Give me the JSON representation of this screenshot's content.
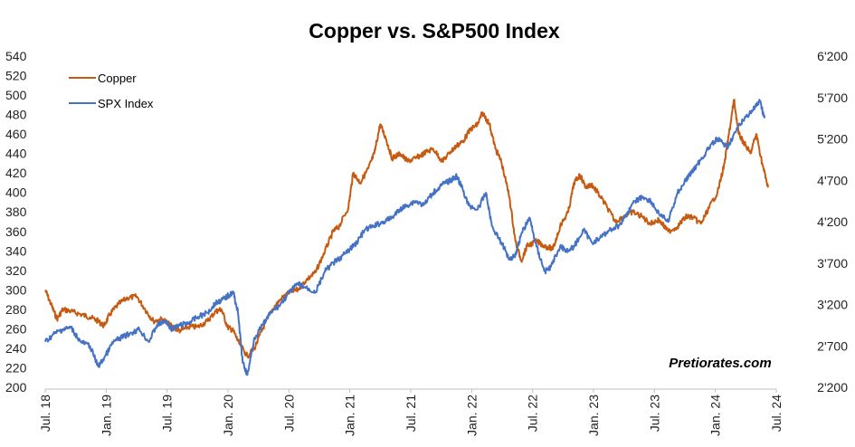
{
  "chart_data": {
    "type": "line",
    "title": "Copper vs. S&P500 Index",
    "watermark": "Pretiorates.com",
    "x_tick_labels": [
      "Jul. 18",
      "Jan. 19",
      "Jul. 19",
      "Jan. 20",
      "Jul. 20",
      "Jan. 21",
      "Jul. 21",
      "Jan. 22",
      "Jul. 22",
      "Jan. 23",
      "Jul. 23",
      "Jan. 24",
      "Jul. 24"
    ],
    "x_range": [
      2018.5,
      2024.72
    ],
    "y_left": {
      "range": [
        200,
        540
      ],
      "ticks": [
        200,
        220,
        240,
        260,
        280,
        300,
        320,
        340,
        360,
        380,
        400,
        420,
        440,
        460,
        480,
        500,
        520,
        540
      ]
    },
    "y_right": {
      "range": [
        2200,
        6200
      ],
      "ticks": [
        2200,
        2700,
        3200,
        3700,
        4200,
        4700,
        5200,
        5700,
        6200
      ],
      "tick_labels": [
        "2'200",
        "2'700",
        "3'200",
        "3'700",
        "4'200",
        "4'700",
        "5'200",
        "5'700",
        "6'200"
      ]
    },
    "grid": false,
    "legend_position": "top-left",
    "series": [
      {
        "name": "Copper",
        "axis": "left",
        "color": "#C65A11",
        "points": [
          [
            2018.5,
            300
          ],
          [
            2018.55,
            285
          ],
          [
            2018.6,
            270
          ],
          [
            2018.65,
            280
          ],
          [
            2018.72,
            278
          ],
          [
            2018.8,
            275
          ],
          [
            2018.88,
            272
          ],
          [
            2018.95,
            268
          ],
          [
            2019.0,
            263
          ],
          [
            2019.05,
            275
          ],
          [
            2019.12,
            285
          ],
          [
            2019.2,
            292
          ],
          [
            2019.28,
            293
          ],
          [
            2019.35,
            280
          ],
          [
            2019.42,
            268
          ],
          [
            2019.5,
            270
          ],
          [
            2019.58,
            262
          ],
          [
            2019.65,
            258
          ],
          [
            2019.72,
            262
          ],
          [
            2019.8,
            262
          ],
          [
            2019.88,
            268
          ],
          [
            2019.95,
            278
          ],
          [
            2020.0,
            280
          ],
          [
            2020.05,
            262
          ],
          [
            2020.1,
            258
          ],
          [
            2020.15,
            245
          ],
          [
            2020.22,
            232
          ],
          [
            2020.28,
            240
          ],
          [
            2020.35,
            260
          ],
          [
            2020.42,
            278
          ],
          [
            2020.5,
            290
          ],
          [
            2020.58,
            298
          ],
          [
            2020.65,
            300
          ],
          [
            2020.72,
            310
          ],
          [
            2020.8,
            318
          ],
          [
            2020.88,
            340
          ],
          [
            2020.95,
            360
          ],
          [
            2021.0,
            365
          ],
          [
            2021.08,
            385
          ],
          [
            2021.12,
            420
          ],
          [
            2021.18,
            410
          ],
          [
            2021.25,
            425
          ],
          [
            2021.3,
            440
          ],
          [
            2021.35,
            470
          ],
          [
            2021.4,
            455
          ],
          [
            2021.45,
            435
          ],
          [
            2021.52,
            440
          ],
          [
            2021.58,
            432
          ],
          [
            2021.65,
            435
          ],
          [
            2021.72,
            440
          ],
          [
            2021.8,
            445
          ],
          [
            2021.88,
            432
          ],
          [
            2021.95,
            442
          ],
          [
            2022.0,
            448
          ],
          [
            2022.05,
            452
          ],
          [
            2022.12,
            465
          ],
          [
            2022.18,
            470
          ],
          [
            2022.22,
            482
          ],
          [
            2022.28,
            470
          ],
          [
            2022.33,
            445
          ],
          [
            2022.38,
            432
          ],
          [
            2022.45,
            395
          ],
          [
            2022.5,
            350
          ],
          [
            2022.55,
            330
          ],
          [
            2022.6,
            345
          ],
          [
            2022.68,
            350
          ],
          [
            2022.75,
            345
          ],
          [
            2022.82,
            342
          ],
          [
            2022.88,
            365
          ],
          [
            2022.95,
            380
          ],
          [
            2023.0,
            410
          ],
          [
            2023.05,
            418
          ],
          [
            2023.1,
            405
          ],
          [
            2023.15,
            408
          ],
          [
            2023.2,
            400
          ],
          [
            2023.28,
            385
          ],
          [
            2023.35,
            370
          ],
          [
            2023.42,
            375
          ],
          [
            2023.5,
            380
          ],
          [
            2023.58,
            375
          ],
          [
            2023.65,
            368
          ],
          [
            2023.72,
            372
          ],
          [
            2023.8,
            360
          ],
          [
            2023.88,
            365
          ],
          [
            2023.95,
            375
          ],
          [
            2024.0,
            375
          ],
          [
            2024.08,
            368
          ],
          [
            2024.15,
            385
          ],
          [
            2024.22,
            400
          ],
          [
            2024.28,
            430
          ],
          [
            2024.33,
            470
          ],
          [
            2024.36,
            495
          ],
          [
            2024.4,
            460
          ],
          [
            2024.45,
            450
          ],
          [
            2024.5,
            440
          ],
          [
            2024.55,
            460
          ],
          [
            2024.6,
            430
          ],
          [
            2024.65,
            405
          ]
        ]
      },
      {
        "name": "SPX Index",
        "axis": "right",
        "color": "#4472C4",
        "points": [
          [
            2018.5,
            2750
          ],
          [
            2018.58,
            2850
          ],
          [
            2018.65,
            2900
          ],
          [
            2018.72,
            2920
          ],
          [
            2018.8,
            2750
          ],
          [
            2018.88,
            2700
          ],
          [
            2018.95,
            2450
          ],
          [
            2019.0,
            2550
          ],
          [
            2019.08,
            2750
          ],
          [
            2019.15,
            2800
          ],
          [
            2019.22,
            2850
          ],
          [
            2019.3,
            2900
          ],
          [
            2019.38,
            2750
          ],
          [
            2019.45,
            2950
          ],
          [
            2019.52,
            3000
          ],
          [
            2019.58,
            2900
          ],
          [
            2019.65,
            2950
          ],
          [
            2019.72,
            2980
          ],
          [
            2019.8,
            3050
          ],
          [
            2019.88,
            3100
          ],
          [
            2019.95,
            3220
          ],
          [
            2020.0,
            3250
          ],
          [
            2020.05,
            3300
          ],
          [
            2020.1,
            3350
          ],
          [
            2020.14,
            3100
          ],
          [
            2020.18,
            2500
          ],
          [
            2020.22,
            2350
          ],
          [
            2020.28,
            2800
          ],
          [
            2020.35,
            2950
          ],
          [
            2020.42,
            3100
          ],
          [
            2020.5,
            3200
          ],
          [
            2020.58,
            3350
          ],
          [
            2020.65,
            3450
          ],
          [
            2020.72,
            3400
          ],
          [
            2020.8,
            3350
          ],
          [
            2020.88,
            3600
          ],
          [
            2020.95,
            3700
          ],
          [
            2021.0,
            3750
          ],
          [
            2021.08,
            3850
          ],
          [
            2021.15,
            3950
          ],
          [
            2021.22,
            4100
          ],
          [
            2021.3,
            4150
          ],
          [
            2021.38,
            4200
          ],
          [
            2021.45,
            4250
          ],
          [
            2021.52,
            4350
          ],
          [
            2021.58,
            4400
          ],
          [
            2021.65,
            4450
          ],
          [
            2021.72,
            4400
          ],
          [
            2021.8,
            4550
          ],
          [
            2021.88,
            4650
          ],
          [
            2021.95,
            4700
          ],
          [
            2022.0,
            4750
          ],
          [
            2022.05,
            4600
          ],
          [
            2022.1,
            4400
          ],
          [
            2022.18,
            4350
          ],
          [
            2022.25,
            4550
          ],
          [
            2022.3,
            4150
          ],
          [
            2022.38,
            3950
          ],
          [
            2022.45,
            3750
          ],
          [
            2022.5,
            3800
          ],
          [
            2022.55,
            4050
          ],
          [
            2022.62,
            4250
          ],
          [
            2022.68,
            3900
          ],
          [
            2022.75,
            3600
          ],
          [
            2022.8,
            3650
          ],
          [
            2022.88,
            3900
          ],
          [
            2022.95,
            3850
          ],
          [
            2023.0,
            3900
          ],
          [
            2023.08,
            4100
          ],
          [
            2023.15,
            3950
          ],
          [
            2023.22,
            4000
          ],
          [
            2023.3,
            4100
          ],
          [
            2023.38,
            4150
          ],
          [
            2023.45,
            4300
          ],
          [
            2023.52,
            4450
          ],
          [
            2023.58,
            4500
          ],
          [
            2023.65,
            4450
          ],
          [
            2023.72,
            4300
          ],
          [
            2023.8,
            4200
          ],
          [
            2023.88,
            4550
          ],
          [
            2023.95,
            4700
          ],
          [
            2024.0,
            4800
          ],
          [
            2024.08,
            4950
          ],
          [
            2024.15,
            5100
          ],
          [
            2024.22,
            5200
          ],
          [
            2024.3,
            5100
          ],
          [
            2024.38,
            5300
          ],
          [
            2024.45,
            5450
          ],
          [
            2024.52,
            5550
          ],
          [
            2024.58,
            5650
          ],
          [
            2024.62,
            5450
          ]
        ]
      }
    ]
  }
}
